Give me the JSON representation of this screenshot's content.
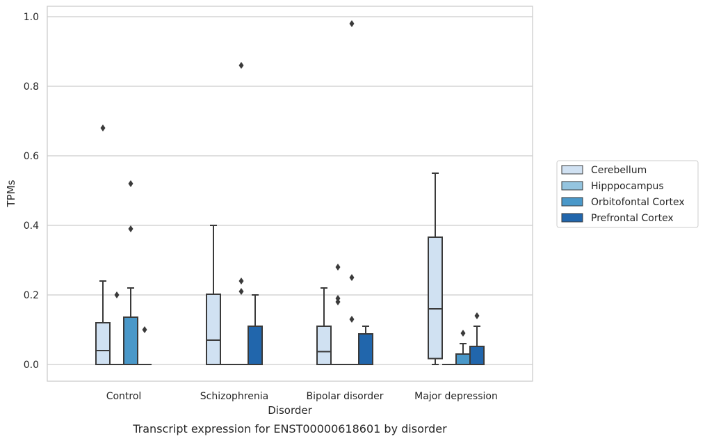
{
  "chart_data": {
    "type": "box",
    "title": "",
    "caption": "Transcript expression for ENST00000618601 by disorder",
    "xlabel": "Disorder",
    "ylabel": "TPMs",
    "ylim": [
      -0.045,
      1.03
    ],
    "yticks": [
      0.0,
      0.2,
      0.4,
      0.6,
      0.8,
      1.0
    ],
    "ytick_labels": [
      "0.0",
      "0.2",
      "0.4",
      "0.6",
      "0.8",
      "1.0"
    ],
    "grid": true,
    "legend_position": "right",
    "categories": [
      "Control",
      "Schizophrenia",
      "Bipolar disorder",
      "Major depression"
    ],
    "series": [
      {
        "name": "Cerebellum",
        "color": "#d0e1f2",
        "boxes": [
          {
            "q1": 0.0,
            "median": 0.04,
            "q3": 0.12,
            "whisker_low": 0.0,
            "whisker_high": 0.24,
            "outliers": [
              0.68
            ]
          },
          {
            "q1": 0.0,
            "median": 0.07,
            "q3": 0.202,
            "whisker_low": 0.0,
            "whisker_high": 0.4,
            "outliers": []
          },
          {
            "q1": 0.0,
            "median": 0.037,
            "q3": 0.11,
            "whisker_low": 0.0,
            "whisker_high": 0.22,
            "outliers": []
          },
          {
            "q1": 0.017,
            "median": 0.16,
            "q3": 0.366,
            "whisker_low": 0.0,
            "whisker_high": 0.55,
            "outliers": []
          }
        ]
      },
      {
        "name": "Hipppocampus",
        "color": "#94c4df",
        "boxes": [
          {
            "q1": 0.0,
            "median": 0.0,
            "q3": 0.0,
            "whisker_low": 0.0,
            "whisker_high": 0.0,
            "outliers": [
              0.2
            ]
          },
          {
            "q1": 0.0,
            "median": 0.0,
            "q3": 0.0,
            "whisker_low": 0.0,
            "whisker_high": 0.0,
            "outliers": []
          },
          {
            "q1": 0.0,
            "median": 0.0,
            "q3": 0.0,
            "whisker_low": 0.0,
            "whisker_high": 0.0,
            "outliers": [
              0.28,
              0.19,
              0.18
            ]
          },
          {
            "q1": 0.0,
            "median": 0.0,
            "q3": 0.0,
            "whisker_low": 0.0,
            "whisker_high": 0.0,
            "outliers": []
          }
        ]
      },
      {
        "name": "Orbitofontal Cortex",
        "color": "#4a98c9",
        "boxes": [
          {
            "q1": 0.0,
            "median": 0.0,
            "q3": 0.136,
            "whisker_low": 0.0,
            "whisker_high": 0.22,
            "outliers": [
              0.52,
              0.39
            ]
          },
          {
            "q1": 0.0,
            "median": 0.0,
            "q3": 0.0,
            "whisker_low": 0.0,
            "whisker_high": 0.0,
            "outliers": [
              0.86,
              0.24,
              0.21
            ]
          },
          {
            "q1": 0.0,
            "median": 0.0,
            "q3": 0.0,
            "whisker_low": 0.0,
            "whisker_high": 0.0,
            "outliers": [
              0.98,
              0.25,
              0.13
            ]
          },
          {
            "q1": 0.0,
            "median": 0.0,
            "q3": 0.03,
            "whisker_low": 0.0,
            "whisker_high": 0.06,
            "outliers": [
              0.09
            ]
          }
        ]
      },
      {
        "name": "Prefrontal Cortex",
        "color": "#2166ac",
        "boxes": [
          {
            "q1": 0.0,
            "median": 0.0,
            "q3": 0.0,
            "whisker_low": 0.0,
            "whisker_high": 0.0,
            "outliers": [
              0.1
            ]
          },
          {
            "q1": 0.0,
            "median": 0.0,
            "q3": 0.11,
            "whisker_low": 0.0,
            "whisker_high": 0.2,
            "outliers": []
          },
          {
            "q1": 0.0,
            "median": 0.0,
            "q3": 0.088,
            "whisker_low": 0.0,
            "whisker_high": 0.11,
            "outliers": []
          },
          {
            "q1": 0.0,
            "median": 0.0,
            "q3": 0.052,
            "whisker_low": 0.0,
            "whisker_high": 0.11,
            "outliers": [
              0.14
            ]
          }
        ]
      }
    ]
  }
}
